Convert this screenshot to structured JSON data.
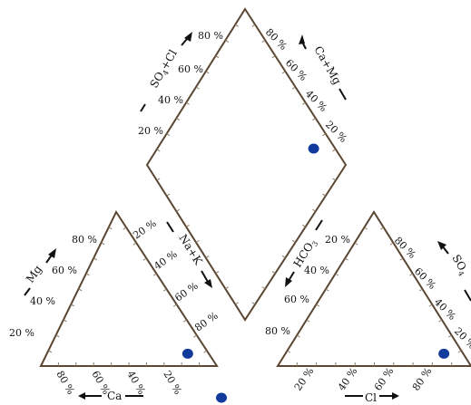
{
  "chart_data": {
    "type": "scatter",
    "subtype": "piper-trilinear",
    "title": "",
    "tick_labels": [
      "20 %",
      "40 %",
      "60 %",
      "80 %"
    ],
    "panels": {
      "cation_triangle": {
        "axes": [
          "Mg",
          "Ca",
          "Na+K"
        ],
        "axis_labels": {
          "Mg": "Mg",
          "Ca": "Ca",
          "NaK": "Na+K"
        }
      },
      "anion_triangle": {
        "axes": [
          "HCO3",
          "Cl",
          "SO4"
        ],
        "axis_labels": {
          "HCO3": "HCO",
          "HCO3_sub": "3",
          "Cl": "Cl",
          "SO4": "SO",
          "SO4_sub": "4"
        }
      },
      "diamond": {
        "axes": [
          "SO4+Cl",
          "Ca+Mg"
        ],
        "axis_labels": {
          "SO4Cl_pre": "SO",
          "SO4Cl_sub": "4",
          "SO4Cl_post": "+Cl",
          "CaMg": "Ca+Mg"
        }
      }
    },
    "samples": [
      {
        "cation": {
          "Ca": 12,
          "Mg": 8,
          "NaK": 80
        },
        "anion": {
          "Cl": 82,
          "SO4": 8,
          "HCO3": 10
        },
        "diamond": {
          "CaMg": 20,
          "SO4Cl": 90
        },
        "color": "#123a9c"
      }
    ],
    "colors": {
      "frame": "#5a4632",
      "tick": "#8a7a66",
      "point": "#123a9c"
    }
  }
}
